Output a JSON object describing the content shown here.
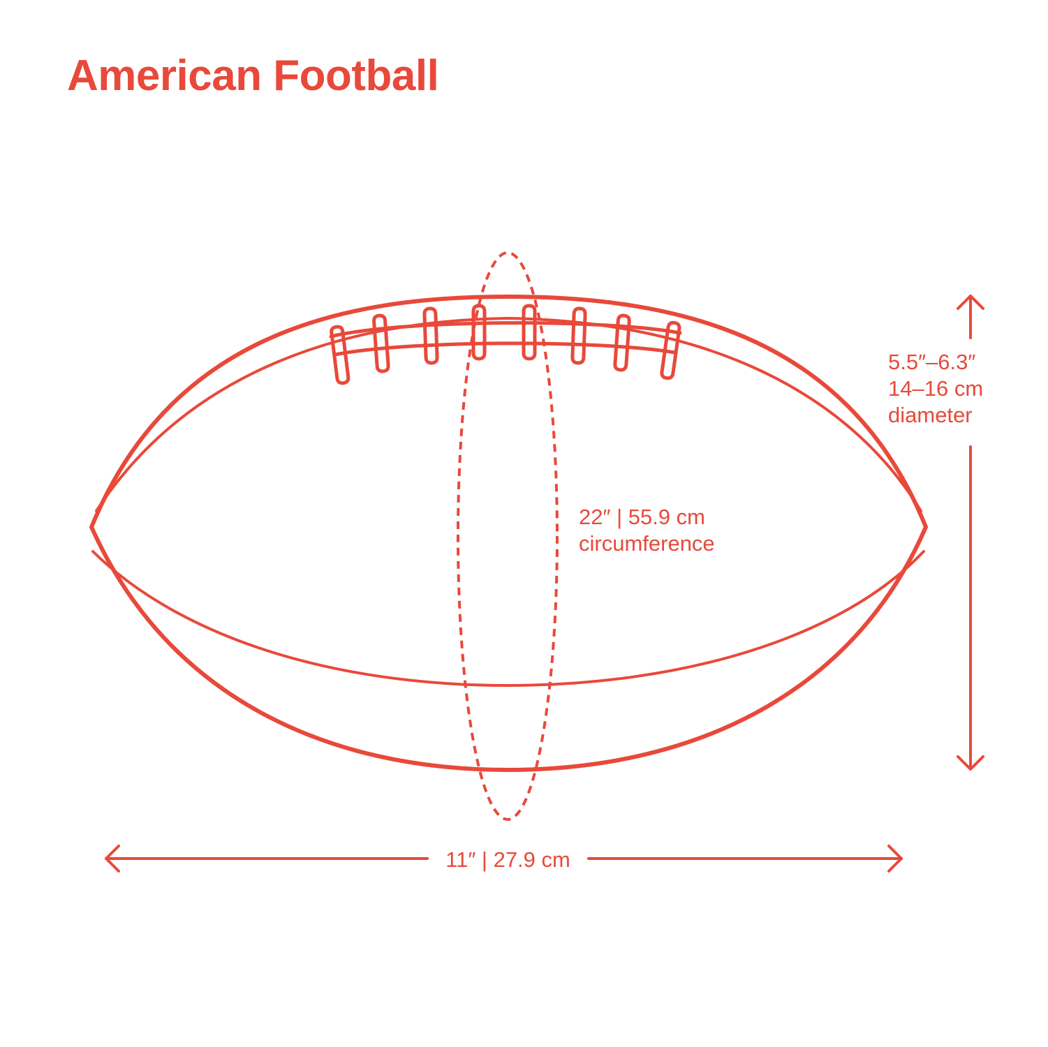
{
  "title": "American Football",
  "colors": {
    "accent": "#E8493A",
    "background": "#FFFFFF"
  },
  "dimensions": {
    "circumference": {
      "value": "22″ | 55.9 cm",
      "caption": "circumference"
    },
    "diameter": {
      "range_in": "5.5″–6.3″",
      "range_cm": "14–16 cm",
      "caption": "diameter"
    },
    "length": {
      "value": "11″ | 27.9 cm"
    }
  },
  "laces": {
    "count": 8
  }
}
